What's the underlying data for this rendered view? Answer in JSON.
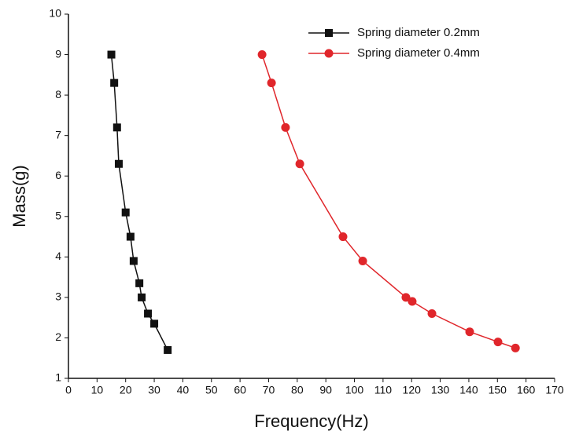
{
  "chart_data": {
    "type": "line",
    "xlabel": "Frequency(Hz)",
    "ylabel": "Mass(g)",
    "xlim": [
      0,
      170
    ],
    "xticks": [
      0,
      10,
      20,
      30,
      40,
      50,
      60,
      70,
      80,
      90,
      100,
      110,
      120,
      130,
      140,
      150,
      160,
      170
    ],
    "ylim": [
      1,
      10
    ],
    "yticks": [
      1,
      2,
      3,
      4,
      5,
      6,
      7,
      8,
      9,
      10
    ],
    "legend": "top-right",
    "series": [
      {
        "name": "Spring diameter 0.2mm",
        "color": "#111111",
        "marker": "square",
        "x": [
          15,
          16,
          17,
          17.6,
          20,
          21.7,
          22.8,
          24.8,
          25.6,
          27.8,
          30,
          34.7
        ],
        "values": [
          9.0,
          8.3,
          7.2,
          6.3,
          5.1,
          4.5,
          3.9,
          3.35,
          3.0,
          2.6,
          2.35,
          1.7
        ]
      },
      {
        "name": "Spring diameter 0.4mm",
        "color": "#e0262b",
        "marker": "circle",
        "x": [
          67.7,
          71,
          75.9,
          80.9,
          96,
          102.9,
          118,
          120.2,
          127.1,
          140.3,
          150.2,
          156.3
        ],
        "values": [
          9.0,
          8.3,
          7.2,
          6.3,
          4.5,
          3.9,
          3.0,
          2.9,
          2.6,
          2.15,
          1.9,
          1.75
        ]
      }
    ]
  }
}
